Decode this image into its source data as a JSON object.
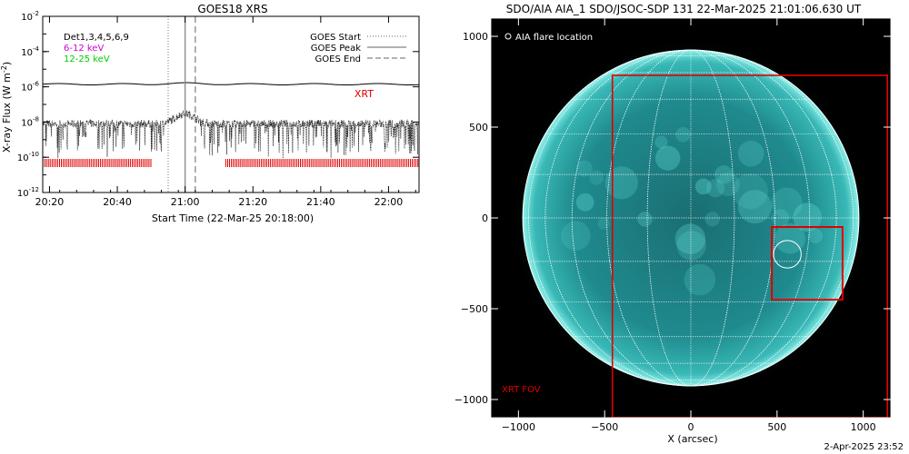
{
  "chart_data": [
    {
      "type": "line",
      "title": "GOES18 XRS",
      "xlabel": "Start Time (22-Mar-25 20:18:00)",
      "ylabel": "X-ray Flux (W m",
      "ylabel_sup": "-2",
      "ylabel_close": ")",
      "x_start_min": 0,
      "x_end_min": 111,
      "xticks": [
        {
          "label": "20:20",
          "min": 2
        },
        {
          "label": "20:40",
          "min": 22
        },
        {
          "label": "21:00",
          "min": 42
        },
        {
          "label": "21:20",
          "min": 62
        },
        {
          "label": "21:40",
          "min": 82
        },
        {
          "label": "22:00",
          "min": 102
        }
      ],
      "y_log": true,
      "ylim_exp": [
        -12,
        -2
      ],
      "ytick_exps": [
        "-12",
        "-10",
        "-8",
        "-6",
        "-4",
        "-2"
      ],
      "legend_left": [
        {
          "text": "Det1,3,4,5,6,9",
          "color": "#000000"
        },
        {
          "text": "6-12 keV",
          "color": "#d000d0"
        },
        {
          "text": "12-25 keV",
          "color": "#00cc00"
        }
      ],
      "legend_right": [
        {
          "text": "GOES Start",
          "style": "dotted"
        },
        {
          "text": "GOES Peak",
          "style": "solid"
        },
        {
          "text": "GOES End",
          "style": "dashed"
        }
      ],
      "xrt_label": "XRT",
      "xrt_color": "#e00000",
      "goes_start_min": 37,
      "goes_peak_min": 42,
      "goes_end_min": 45,
      "xrt_coverage_min": [
        [
          0,
          32
        ],
        [
          54,
          111
        ]
      ],
      "long_channel_flux": 1.4e-06,
      "short_channel_background_flux": 8e-09,
      "short_channel_peak_flux": 3e-08
    },
    {
      "type": "image",
      "title": "SDO/AIA AIA_1 SDO/JSOC-SDP 131 22-Mar-2025 21:01:06.630 UT",
      "xlabel": "X (arcsec)",
      "ylabel": "",
      "xlim": [
        -1160,
        1160
      ],
      "ylim": [
        -1100,
        1100
      ],
      "xticks": [
        -1000,
        -500,
        0,
        500,
        1000
      ],
      "yticks": [
        -1000,
        -500,
        0,
        500,
        1000
      ],
      "solar_radius_arcsec": 975,
      "disk_color": "#2aa8a8",
      "grid_color": "#ffffff",
      "flare_label": "AIA flare location",
      "flare_x": 560,
      "flare_y": -200,
      "flare_radius": 80,
      "xrt_fov_label": "XRT FOV",
      "xrt_fov": {
        "x0": -455,
        "x1": 1140,
        "y0": -1100,
        "y1": 785
      },
      "zoom_box": {
        "x0": 470,
        "x1": 880,
        "y0": -450,
        "y1": -50
      },
      "box_color": "#e00000"
    }
  ],
  "footer": {
    "timestamp": "2-Apr-2025 23:52"
  }
}
